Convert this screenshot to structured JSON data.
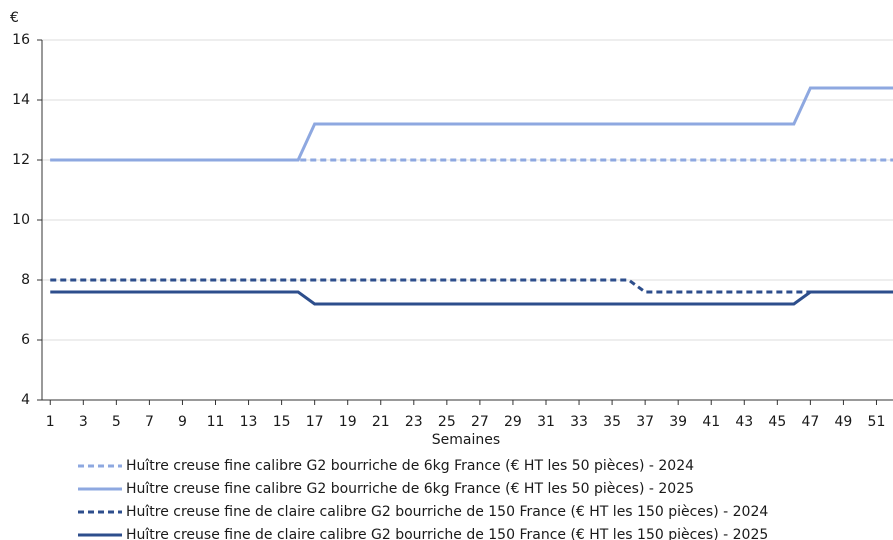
{
  "chart_data": {
    "type": "line",
    "y_unit": "€",
    "x_label": "Semaines",
    "x": [
      1,
      2,
      3,
      4,
      5,
      6,
      7,
      8,
      9,
      10,
      11,
      12,
      13,
      14,
      15,
      16,
      17,
      18,
      19,
      20,
      21,
      22,
      23,
      24,
      25,
      26,
      27,
      28,
      29,
      30,
      31,
      32,
      33,
      34,
      35,
      36,
      37,
      38,
      39,
      40,
      41,
      42,
      43,
      44,
      45,
      46,
      47,
      48,
      49,
      50,
      51,
      52
    ],
    "xlim": [
      0.5,
      52
    ],
    "xticks": [
      1,
      3,
      5,
      7,
      9,
      11,
      13,
      15,
      17,
      19,
      21,
      23,
      25,
      27,
      29,
      31,
      33,
      35,
      37,
      39,
      41,
      43,
      45,
      47,
      49,
      51
    ],
    "ylim": [
      4,
      16
    ],
    "yticks": [
      4,
      6,
      8,
      10,
      12,
      14,
      16
    ],
    "grid": true,
    "series": [
      {
        "name": "Huître creuse fine calibre G2 bourriche de 6kg France (€ HT les 50 pièces) - 2024",
        "color": "#8ea8e0",
        "dashed": true,
        "values": [
          12,
          12,
          12,
          12,
          12,
          12,
          12,
          12,
          12,
          12,
          12,
          12,
          12,
          12,
          12,
          12,
          12,
          12,
          12,
          12,
          12,
          12,
          12,
          12,
          12,
          12,
          12,
          12,
          12,
          12,
          12,
          12,
          12,
          12,
          12,
          12,
          12,
          12,
          12,
          12,
          12,
          12,
          12,
          12,
          12,
          12,
          12,
          12,
          12,
          12,
          12,
          12
        ]
      },
      {
        "name": "Huître creuse fine calibre G2 bourriche de 6kg France (€ HT les 50 pièces) - 2025",
        "color": "#8ea8e0",
        "dashed": false,
        "values": [
          12,
          12,
          12,
          12,
          12,
          12,
          12,
          12,
          12,
          12,
          12,
          12,
          12,
          12,
          12,
          12,
          13.2,
          13.2,
          13.2,
          13.2,
          13.2,
          13.2,
          13.2,
          13.2,
          13.2,
          13.2,
          13.2,
          13.2,
          13.2,
          13.2,
          13.2,
          13.2,
          13.2,
          13.2,
          13.2,
          13.2,
          13.2,
          13.2,
          13.2,
          13.2,
          13.2,
          13.2,
          13.2,
          13.2,
          13.2,
          13.2,
          14.4,
          14.4,
          14.4,
          14.4,
          14.4,
          14.4
        ]
      },
      {
        "name": "Huître creuse fine de claire calibre G2 bourriche de 150 France (€ HT les 150 pièces) - 2024",
        "color": "#2d4e8c",
        "dashed": true,
        "values": [
          8,
          8,
          8,
          8,
          8,
          8,
          8,
          8,
          8,
          8,
          8,
          8,
          8,
          8,
          8,
          8,
          8,
          8,
          8,
          8,
          8,
          8,
          8,
          8,
          8,
          8,
          8,
          8,
          8,
          8,
          8,
          8,
          8,
          8,
          8,
          8,
          7.6,
          7.6,
          7.6,
          7.6,
          7.6,
          7.6,
          7.6,
          7.6,
          7.6,
          7.6,
          7.6,
          7.6,
          7.6,
          7.6,
          7.6,
          7.6
        ]
      },
      {
        "name": "Huître creuse fine de claire calibre G2 bourriche de 150 France (€ HT les 150 pièces) - 2025",
        "color": "#2d4e8c",
        "dashed": false,
        "values": [
          7.6,
          7.6,
          7.6,
          7.6,
          7.6,
          7.6,
          7.6,
          7.6,
          7.6,
          7.6,
          7.6,
          7.6,
          7.6,
          7.6,
          7.6,
          7.6,
          7.2,
          7.2,
          7.2,
          7.2,
          7.2,
          7.2,
          7.2,
          7.2,
          7.2,
          7.2,
          7.2,
          7.2,
          7.2,
          7.2,
          7.2,
          7.2,
          7.2,
          7.2,
          7.2,
          7.2,
          7.2,
          7.2,
          7.2,
          7.2,
          7.2,
          7.2,
          7.2,
          7.2,
          7.2,
          7.2,
          7.6,
          7.6,
          7.6,
          7.6,
          7.6,
          7.6
        ]
      }
    ]
  }
}
